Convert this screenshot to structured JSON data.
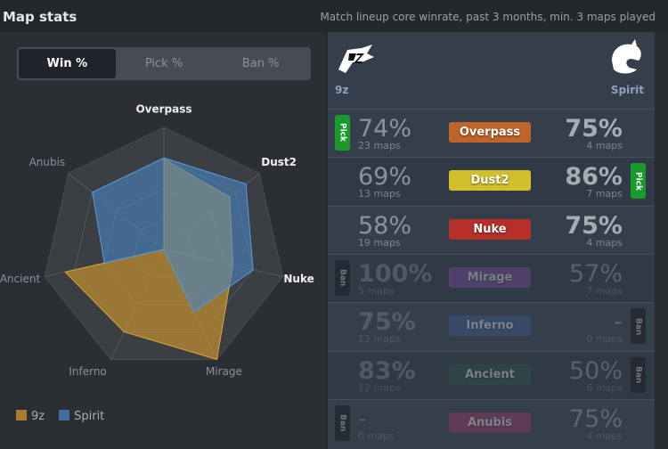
{
  "header": {
    "title": "Map stats",
    "subtitle": "Match lineup core winrate, past 3 months, min. 3 maps played"
  },
  "tabs": [
    {
      "label": "Win %",
      "active": true
    },
    {
      "label": "Pick %",
      "active": false
    },
    {
      "label": "Ban %",
      "active": false
    }
  ],
  "teams": {
    "left": "9z",
    "right": "Spirit"
  },
  "colors": {
    "team1": "#c2902e",
    "team2": "#4a87c4"
  },
  "chart_data": {
    "type": "radar",
    "axes": [
      "Overpass",
      "Dust2",
      "Nuke",
      "Mirage",
      "Inferno",
      "Ancient",
      "Anubis"
    ],
    "range": [
      0,
      100
    ],
    "series": [
      {
        "name": "9z",
        "values": [
          74,
          69,
          58,
          100,
          75,
          83,
          0
        ]
      },
      {
        "name": "Spirit",
        "values": [
          75,
          86,
          75,
          57,
          0,
          50,
          75
        ]
      }
    ],
    "highlighted_axes": [
      "Overpass",
      "Dust2",
      "Nuke"
    ],
    "legend": "bottom-left"
  },
  "maps": [
    {
      "name": "Overpass",
      "color": "#c0642a",
      "left": {
        "pct": "74%",
        "maps": "23 maps"
      },
      "right": {
        "pct": "75%",
        "maps": "4 maps"
      },
      "badge": {
        "side": "left",
        "label": "Pick"
      },
      "dim": false
    },
    {
      "name": "Dust2",
      "color": "#d1c02a",
      "left": {
        "pct": "69%",
        "maps": "13 maps"
      },
      "right": {
        "pct": "86%",
        "maps": "7 maps"
      },
      "badge": {
        "side": "right",
        "label": "Pick"
      },
      "dim": false
    },
    {
      "name": "Nuke",
      "color": "#b6302a",
      "left": {
        "pct": "58%",
        "maps": "19 maps"
      },
      "right": {
        "pct": "75%",
        "maps": "4 maps"
      },
      "badge": null,
      "dim": false
    },
    {
      "name": "Mirage",
      "color": "#8a4fb0",
      "left": {
        "pct": "100%",
        "maps": "5 maps"
      },
      "right": {
        "pct": "57%",
        "maps": "7 maps"
      },
      "badge": {
        "side": "left",
        "label": "Ban"
      },
      "dim": true
    },
    {
      "name": "Inferno",
      "color": "#3a5f9a",
      "left": {
        "pct": "75%",
        "maps": "12 maps"
      },
      "right": {
        "pct": "-",
        "maps": "0 maps"
      },
      "badge": {
        "side": "right",
        "label": "Ban"
      },
      "dim": true
    },
    {
      "name": "Ancient",
      "color": "#2c5a48",
      "left": {
        "pct": "83%",
        "maps": "12 maps"
      },
      "right": {
        "pct": "50%",
        "maps": "6 maps"
      },
      "badge": {
        "side": "right",
        "label": "Ban"
      },
      "dim": true
    },
    {
      "name": "Anubis",
      "color": "#b0346a",
      "left": {
        "pct": "-",
        "maps": "0 maps"
      },
      "right": {
        "pct": "75%",
        "maps": "4 maps"
      },
      "badge": {
        "side": "left",
        "label": "Ban"
      },
      "dim": true
    }
  ]
}
